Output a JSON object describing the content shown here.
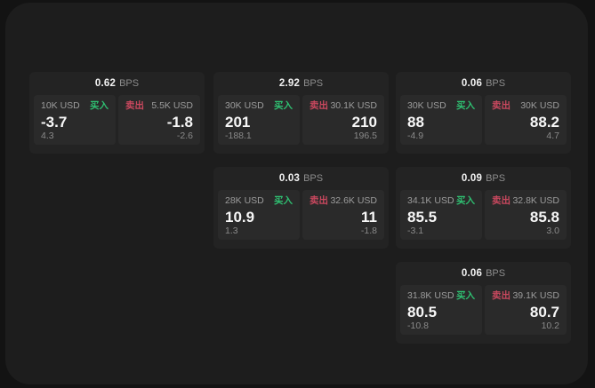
{
  "labels": {
    "bps_unit": "BPS",
    "buy": "买入",
    "sell": "卖出"
  },
  "colors": {
    "page_bg": "#131313",
    "window_bg": "#1d1d1d",
    "card_bg": "#232323",
    "panel_bg": "#2a2a2a",
    "buy_green": "#2fbf71",
    "sell_red": "#c9485e",
    "primary_text": "#f7f7f7",
    "muted_text": "#9c9c9c"
  },
  "cards": [
    {
      "bps": "0.62",
      "buy": {
        "size": "10K USD",
        "price": "-3.7",
        "delta": "4.3"
      },
      "sell": {
        "size": "5.5K USD",
        "price": "-1.8",
        "delta": "-2.6"
      }
    },
    {
      "bps": "2.92",
      "buy": {
        "size": "30K USD",
        "price": "201",
        "delta": "-188.1"
      },
      "sell": {
        "size": "30.1K USD",
        "price": "210",
        "delta": "196.5"
      }
    },
    {
      "bps": "0.06",
      "buy": {
        "size": "30K USD",
        "price": "88",
        "delta": "-4.9"
      },
      "sell": {
        "size": "30K USD",
        "price": "88.2",
        "delta": "4.7"
      }
    },
    {
      "bps": "0.03",
      "buy": {
        "size": "28K USD",
        "price": "10.9",
        "delta": "1.3"
      },
      "sell": {
        "size": "32.6K USD",
        "price": "11",
        "delta": "-1.8"
      }
    },
    {
      "bps": "0.09",
      "buy": {
        "size": "34.1K USD",
        "price": "85.5",
        "delta": "-3.1"
      },
      "sell": {
        "size": "32.8K USD",
        "price": "85.8",
        "delta": "3.0"
      }
    },
    {
      "bps": "0.06",
      "buy": {
        "size": "31.8K USD",
        "price": "80.5",
        "delta": "-10.8"
      },
      "sell": {
        "size": "39.1K USD",
        "price": "80.7",
        "delta": "10.2"
      }
    }
  ]
}
